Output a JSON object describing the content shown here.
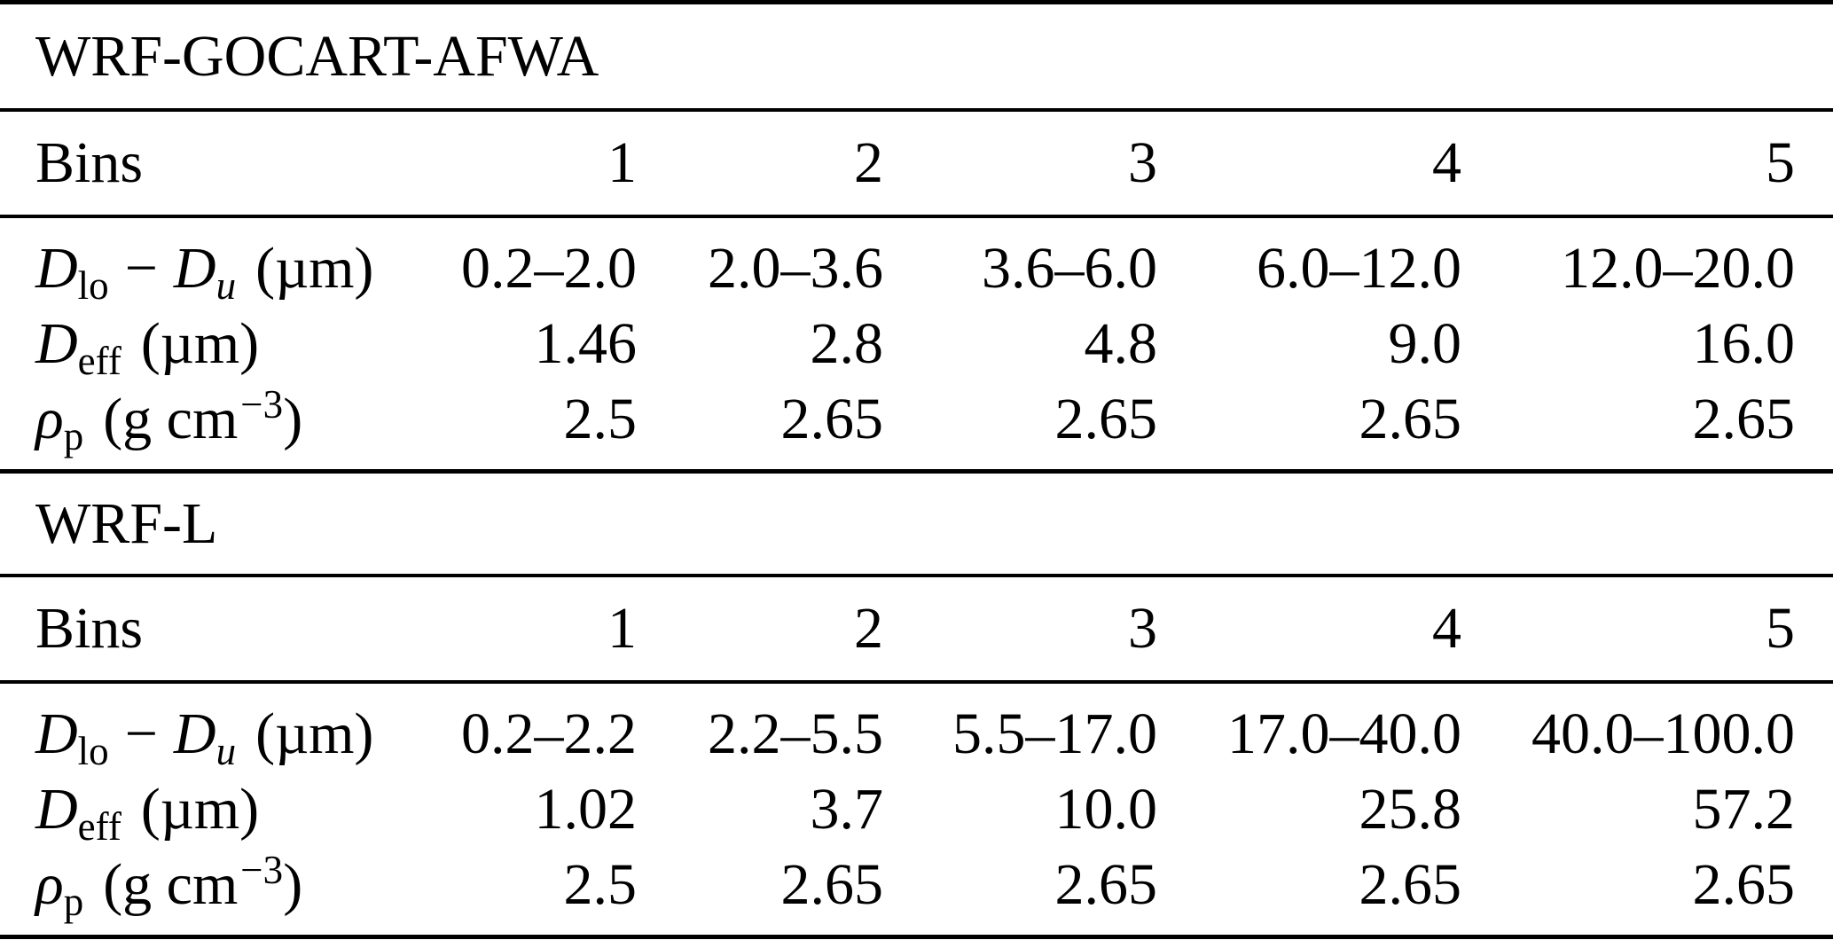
{
  "document": {
    "background": "#ffffff",
    "text_color": "#000000"
  },
  "table": {
    "sections": [
      {
        "title": "WRF-GOCART-AFWA",
        "header": {
          "label": "Bins",
          "bins": [
            "1",
            "2",
            "3",
            "4",
            "5"
          ]
        },
        "rows": [
          {
            "sym": "D",
            "sub": "lo",
            "op": "−",
            "sym2": "D",
            "sub2": "u",
            "unit": "(µm)",
            "values": [
              "0.2–2.0",
              "2.0–3.6",
              "3.6–6.0",
              "6.0–12.0",
              "12.0–20.0"
            ]
          },
          {
            "sym": "D",
            "sub": "eff",
            "unit": "(µm)",
            "values": [
              "1.46",
              "2.8",
              "4.8",
              "9.0",
              "16.0"
            ]
          },
          {
            "sym": "ρ",
            "sub": "p",
            "unit_pre": "(g cm",
            "unit_sup": "−3",
            "unit_post": ")",
            "values": [
              "2.5",
              "2.65",
              "2.65",
              "2.65",
              "2.65"
            ]
          }
        ]
      },
      {
        "title": "WRF-L",
        "header": {
          "label": "Bins",
          "bins": [
            "1",
            "2",
            "3",
            "4",
            "5"
          ]
        },
        "rows": [
          {
            "sym": "D",
            "sub": "lo",
            "op": "−",
            "sym2": "D",
            "sub2": "u",
            "unit": "(µm)",
            "values": [
              "0.2–2.2",
              "2.2–5.5",
              "5.5–17.0",
              "17.0–40.0",
              "40.0–100.0"
            ]
          },
          {
            "sym": "D",
            "sub": "eff",
            "unit": "(µm)",
            "values": [
              "1.02",
              "3.7",
              "10.0",
              "25.8",
              "57.2"
            ]
          },
          {
            "sym": "ρ",
            "sub": "p",
            "unit_pre": "(g cm",
            "unit_sup": "−3",
            "unit_post": ")",
            "values": [
              "2.5",
              "2.65",
              "2.65",
              "2.65",
              "2.65"
            ]
          }
        ]
      }
    ]
  }
}
